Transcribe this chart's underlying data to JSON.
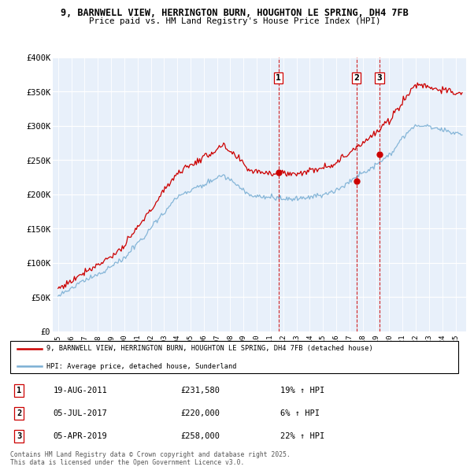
{
  "title_line1": "9, BARNWELL VIEW, HERRINGTON BURN, HOUGHTON LE SPRING, DH4 7FB",
  "title_line2": "Price paid vs. HM Land Registry's House Price Index (HPI)",
  "background_color": "#dce8f5",
  "background_color2": "#e8f0fa",
  "hpi_color": "#7aafd4",
  "price_color": "#cc0000",
  "vline_color": "#cc0000",
  "ylim": [
    0,
    400000
  ],
  "yticks": [
    0,
    50000,
    100000,
    150000,
    200000,
    250000,
    300000,
    350000,
    400000
  ],
  "ytick_labels": [
    "£0",
    "£50K",
    "£100K",
    "£150K",
    "£200K",
    "£250K",
    "£300K",
    "£350K",
    "£400K"
  ],
  "sale_events": [
    {
      "date_num": 2011.63,
      "price": 231580,
      "label": "1",
      "pct": "19% ↑ HPI"
    },
    {
      "date_num": 2017.51,
      "price": 220000,
      "label": "2",
      "pct": "6% ↑ HPI"
    },
    {
      "date_num": 2019.26,
      "price": 258000,
      "label": "3",
      "pct": "22% ↑ HPI"
    }
  ],
  "legend_line1": "9, BARNWELL VIEW, HERRINGTON BURN, HOUGHTON LE SPRING, DH4 7FB (detached house)",
  "legend_line2": "HPI: Average price, detached house, Sunderland",
  "table_entries": [
    {
      "num": "1",
      "date": "19-AUG-2011",
      "price": "£231,580",
      "pct": "19% ↑ HPI"
    },
    {
      "num": "2",
      "date": "05-JUL-2017",
      "price": "£220,000",
      "pct": "6% ↑ HPI"
    },
    {
      "num": "3",
      "date": "05-APR-2019",
      "price": "£258,000",
      "pct": "22% ↑ HPI"
    }
  ],
  "footnote": "Contains HM Land Registry data © Crown copyright and database right 2025.\nThis data is licensed under the Open Government Licence v3.0."
}
